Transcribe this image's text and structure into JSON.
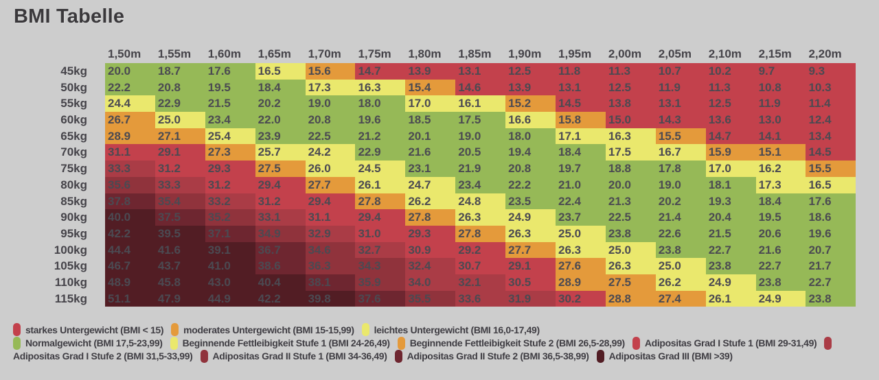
{
  "title": "BMI Tabelle",
  "palette": {
    "background": "#cdcdcd",
    "green": "#96b957",
    "yellow": "#eae86d",
    "orange": "#e49a3b",
    "red1": "#c3414c",
    "red2": "#aa3c46",
    "red3": "#90333c",
    "red4": "#6e2630",
    "red5": "#521d24"
  },
  "chart_data": {
    "type": "heatmap",
    "title": "BMI Tabelle",
    "x_categories": [
      "1,50m",
      "1,55m",
      "1,60m",
      "1,65m",
      "1,70m",
      "1,75m",
      "1,80m",
      "1,85m",
      "1,90m",
      "1,95m",
      "2,00m",
      "2,05m",
      "2,10m",
      "2,15m",
      "2,20m"
    ],
    "x_values_m": [
      1.5,
      1.55,
      1.6,
      1.65,
      1.7,
      1.75,
      1.8,
      1.85,
      1.9,
      1.95,
      2.0,
      2.05,
      2.1,
      2.15,
      2.2
    ],
    "y_categories": [
      "45kg",
      "50kg",
      "55kg",
      "60kg",
      "65kg",
      "70kg",
      "75kg",
      "80kg",
      "85kg",
      "90kg",
      "95kg",
      "100kg",
      "105kg",
      "110kg",
      "115kg"
    ],
    "y_values_kg": [
      45,
      50,
      55,
      60,
      65,
      70,
      75,
      80,
      85,
      90,
      95,
      100,
      105,
      110,
      115
    ],
    "values": [
      [
        "20.0",
        "18.7",
        "17.6",
        "16.5",
        "15.6",
        "14.7",
        "13.9",
        "13.1",
        "12.5",
        "11.8",
        "11.3",
        "10.7",
        "10.2",
        "9.7",
        "9.3"
      ],
      [
        "22.2",
        "20.8",
        "19.5",
        "18.4",
        "17.3",
        "16.3",
        "15.4",
        "14.6",
        "13.9",
        "13.1",
        "12.5",
        "11.9",
        "11.3",
        "10.8",
        "10.3"
      ],
      [
        "24.4",
        "22.9",
        "21.5",
        "20.2",
        "19.0",
        "18.0",
        "17.0",
        "16.1",
        "15.2",
        "14.5",
        "13.8",
        "13.1",
        "12.5",
        "11.9",
        "11.4"
      ],
      [
        "26.7",
        "25.0",
        "23.4",
        "22.0",
        "20.8",
        "19.6",
        "18.5",
        "17.5",
        "16.6",
        "15.8",
        "15.0",
        "14.3",
        "13.6",
        "13.0",
        "12.4"
      ],
      [
        "28.9",
        "27.1",
        "25.4",
        "23.9",
        "22.5",
        "21.2",
        "20.1",
        "19.0",
        "18.0",
        "17.1",
        "16.3",
        "15.5",
        "14.7",
        "14.1",
        "13.4"
      ],
      [
        "31.1",
        "29.1",
        "27.3",
        "25.7",
        "24.2",
        "22.9",
        "21.6",
        "20.5",
        "19.4",
        "18.4",
        "17.5",
        "16.7",
        "15.9",
        "15.1",
        "14.5"
      ],
      [
        "33.3",
        "31.2",
        "29.3",
        "27.5",
        "26.0",
        "24.5",
        "23.1",
        "21.9",
        "20.8",
        "19.7",
        "18.8",
        "17.8",
        "17.0",
        "16.2",
        "15.5"
      ],
      [
        "35.6",
        "33.3",
        "31.2",
        "29.4",
        "27.7",
        "26.1",
        "24.7",
        "23.4",
        "22.2",
        "21.0",
        "20.0",
        "19.0",
        "18.1",
        "17.3",
        "16.5"
      ],
      [
        "37.8",
        "35.4",
        "33.2",
        "31.2",
        "29.4",
        "27.8",
        "26.2",
        "24.8",
        "23.5",
        "22.4",
        "21.3",
        "20.2",
        "19.3",
        "18.4",
        "17.6"
      ],
      [
        "40.0",
        "37.5",
        "35.2",
        "33.1",
        "31.1",
        "29.4",
        "27.8",
        "26.3",
        "24.9",
        "23.7",
        "22.5",
        "21.4",
        "20.4",
        "19.5",
        "18.6"
      ],
      [
        "42.2",
        "39.5",
        "37.1",
        "34.9",
        "32.9",
        "31.0",
        "29.3",
        "27.8",
        "26.3",
        "25.0",
        "23.8",
        "22.6",
        "21.5",
        "20.6",
        "19.6"
      ],
      [
        "44.4",
        "41.6",
        "39.1",
        "36.7",
        "34.6",
        "32.7",
        "30.9",
        "29.2",
        "27.7",
        "26.3",
        "25.0",
        "23.8",
        "22.7",
        "21.6",
        "20.7"
      ],
      [
        "46.7",
        "43.7",
        "41.0",
        "38.6",
        "36.3",
        "34.3",
        "32.4",
        "30.7",
        "29.1",
        "27.6",
        "26.3",
        "25.0",
        "23.8",
        "22.7",
        "21.7"
      ],
      [
        "48.9",
        "45.8",
        "43.0",
        "40.4",
        "38.1",
        "35.9",
        "34.0",
        "32.1",
        "30.5",
        "28.9",
        "27.5",
        "26.2",
        "24.9",
        "23.8",
        "22.7"
      ],
      [
        "51.1",
        "47.9",
        "44.9",
        "42.2",
        "39.8",
        "37.6",
        "35.5",
        "33.6",
        "31.9",
        "30.2",
        "28.8",
        "27.4",
        "26.1",
        "24.9",
        "23.8"
      ]
    ],
    "categories": [
      {
        "color": "red1",
        "max": 15
      },
      {
        "color": "orange",
        "max": 16
      },
      {
        "color": "yellow",
        "max": 17.5
      },
      {
        "color": "green",
        "max": 24
      },
      {
        "color": "yellow",
        "max": 26.5
      },
      {
        "color": "orange",
        "max": 29
      },
      {
        "color": "red1",
        "max": 31.5
      },
      {
        "color": "red2",
        "max": 34
      },
      {
        "color": "red3",
        "max": 36.5
      },
      {
        "color": "red4",
        "max": 39
      },
      {
        "color": "red5",
        "max": null
      }
    ],
    "legend_lines": [
      [
        {
          "swatch": "red1",
          "text": "starkes Untergewicht (BMI < 15)"
        },
        {
          "swatch": "orange",
          "text": "moderates Untergewicht (BMI 15-15,99)"
        },
        {
          "swatch": "yellow",
          "text": "leichtes Untergewicht (BMI 16,0-17,49)"
        }
      ],
      [
        {
          "swatch": "green",
          "text": "Normalgewicht (BMI 17,5-23,99)"
        },
        {
          "swatch": "yellow",
          "text": "Beginnende Fettleibigkeit Stufe 1 (BMI 24-26,49)"
        },
        {
          "swatch": "orange",
          "text": "Beginnende Fettleibigkeit Stufe 2 (BMI 26,5-28,99)"
        },
        {
          "swatch": "red1",
          "text": "Adipositas Grad I Stufe 1 (BMI 29-31,49)"
        },
        {
          "swatch": "red2",
          "text": ""
        }
      ],
      [
        {
          "swatch": null,
          "text": "Adipositas Grad I Stufe 2 (BMI 31,5-33,99)"
        },
        {
          "swatch": "red3",
          "text": "Adipositas Grad II Stufe 1 (BMI 34-36,49)"
        },
        {
          "swatch": "red4",
          "text": "Adipositas Grad II Stufe 2 (BMI 36,5-38,99)"
        },
        {
          "swatch": "red5",
          "text": "Adipositas Grad III (BMI >39)"
        }
      ]
    ]
  }
}
